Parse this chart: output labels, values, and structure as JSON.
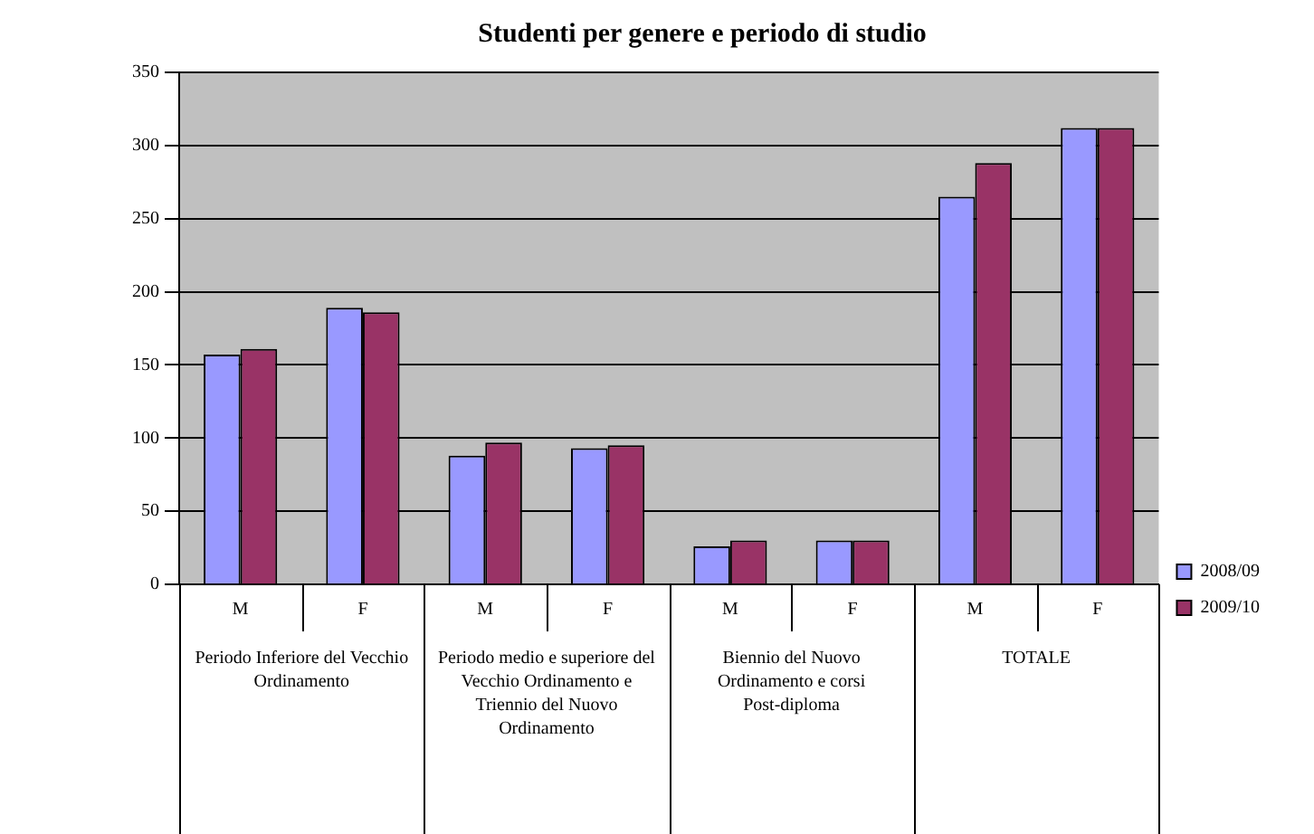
{
  "chart_data": {
    "type": "bar",
    "title": "Studenti per genere e periodo di studio",
    "categories": [
      "M",
      "F",
      "M",
      "F",
      "M",
      "F",
      "M",
      "F"
    ],
    "series": [
      {
        "name": "2008/09",
        "color": "#9999ff",
        "values": [
          157,
          189,
          88,
          93,
          26,
          30,
          265,
          312
        ]
      },
      {
        "name": "2009/10",
        "color": "#993366",
        "values": [
          161,
          186,
          97,
          95,
          30,
          30,
          288,
          312
        ]
      }
    ],
    "annotations": [
      "Periodo Inferiore del Vecchio Ordinamento",
      "Periodo medio e superiore del Vecchio Ordinamento e Triennio del Nuovo Ordinamento",
      "Biennio del Nuovo Ordinamento e corsi Post-diploma",
      "TOTALE"
    ],
    "ylim": [
      0,
      350
    ],
    "yticks": [
      0,
      50,
      100,
      150,
      200,
      250,
      300,
      350
    ],
    "grid": "y",
    "legend": "right"
  }
}
